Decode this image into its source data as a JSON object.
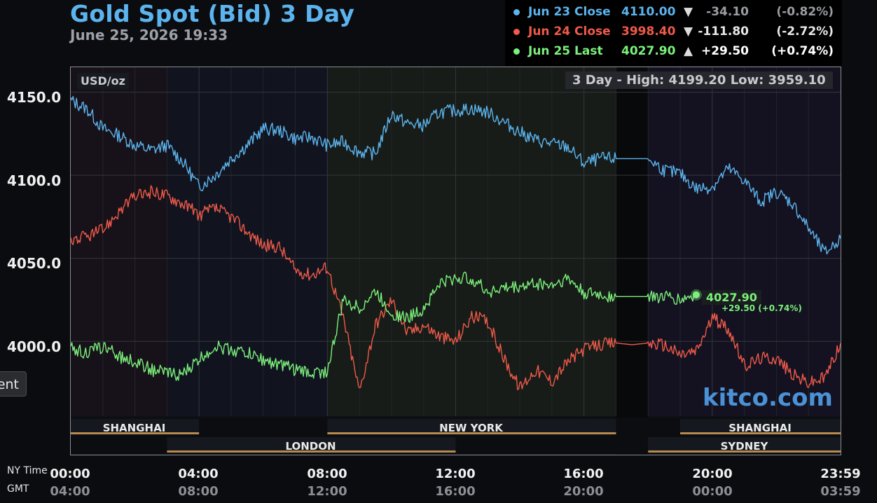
{
  "header": {
    "title": "Gold Spot (Bid) 3 Day",
    "datetime": "June 25, 2026 19:33"
  },
  "legend": [
    {
      "label": "Jun 23 Close",
      "price": "4110.00",
      "arrow": "▼",
      "change": "-34.10",
      "pct": "(-0.82%)",
      "color": "#5cb4ee",
      "change_color": "#9a9ca0"
    },
    {
      "label": "Jun 24 Close",
      "price": "3998.40",
      "arrow": "▼",
      "change": "-111.80",
      "pct": "(-2.72%)",
      "color": "#ef5a4a",
      "change_color": "#e8e8e8"
    },
    {
      "label": "Jun 25 Last",
      "price": "4027.90",
      "arrow": "▲",
      "change": "+29.50",
      "pct": "(+0.74%)",
      "color": "#7cf07c",
      "change_color": "#ffffff"
    }
  ],
  "chart_meta": {
    "unit_label": "USD/oz",
    "hilo": "3 Day - High: 4199.20  Low: 3959.10",
    "watermark": "kitco.com",
    "last_price": "4027.90",
    "last_change": "+29.50 (+0.74%)"
  },
  "side_button": "ent",
  "axis_rows": {
    "ny": "NY Time",
    "gmt": "GMT"
  },
  "chart_data": {
    "type": "line",
    "ylim": [
      3955,
      4165
    ],
    "xlim": [
      0,
      24
    ],
    "y_ticks": [
      4150.0,
      4100.0,
      4050.0,
      4000.0
    ],
    "y_tick_labels": [
      "4150.0",
      "4100.0",
      "4050.0",
      "4000.0"
    ],
    "x_ticks": [
      0,
      4,
      8,
      12,
      16,
      20,
      23.98
    ],
    "x_tick_labels_ny": [
      "00:00",
      "04:00",
      "08:00",
      "12:00",
      "16:00",
      "20:00",
      "23:59"
    ],
    "x_tick_labels_gmt": [
      "04:00",
      "08:00",
      "12:00",
      "16:00",
      "20:00",
      "00:00",
      "03:59"
    ],
    "grid": true,
    "legend_position": "top-right",
    "sessions": [
      {
        "name": "SHANGHAI",
        "start": 0,
        "end": 4,
        "row": 1,
        "label": "SHANGHAI"
      },
      {
        "name": "NEW YORK",
        "start": 8,
        "end": 17,
        "row": 1,
        "label": "NEW YORK"
      },
      {
        "name": "SHANGHAI",
        "start": 19,
        "end": 24,
        "row": 1,
        "label": "SHANGHAI"
      },
      {
        "name": "LONDON",
        "start": 3,
        "end": 12,
        "row": 2,
        "label": "LONDON"
      },
      {
        "name": "SYDNEY",
        "start": 18,
        "end": 24,
        "row": 2,
        "label": "SYDNEY"
      }
    ],
    "series": [
      {
        "name": "Jun 23 Close",
        "color": "#5cb4ee",
        "x": [
          0,
          0.5,
          1,
          1.5,
          2,
          2.5,
          3,
          3.5,
          4,
          4.5,
          5,
          5.5,
          6,
          6.5,
          7,
          7.5,
          8,
          8.5,
          9,
          9.5,
          10,
          10.5,
          11,
          11.5,
          12,
          12.5,
          13,
          13.5,
          14,
          14.5,
          15,
          15.5,
          16,
          16.5,
          17,
          17.5,
          18,
          18.5,
          19,
          19.5,
          20,
          20.5,
          21,
          21.5,
          22,
          22.5,
          23,
          23.5,
          24
        ],
        "y": [
          4145,
          4140,
          4128,
          4124,
          4118,
          4115,
          4118,
          4108,
          4093,
          4100,
          4110,
          4118,
          4128,
          4127,
          4122,
          4123,
          4118,
          4120,
          4114,
          4113,
          4137,
          4131,
          4130,
          4138,
          4139,
          4140,
          4138,
          4132,
          4126,
          4121,
          4119,
          4117,
          4107,
          4110,
          4110,
          4110,
          4110,
          4103,
          4101,
          4092,
          4093,
          4104,
          4097,
          4084,
          4090,
          4083,
          4068,
          4053,
          4062
        ]
      },
      {
        "name": "Jun 24 Close",
        "color": "#ef5a4a",
        "x": [
          0,
          0.5,
          1,
          1.5,
          2,
          2.5,
          3,
          3.5,
          4,
          4.5,
          5,
          5.5,
          6,
          6.5,
          7,
          7.5,
          8,
          8.5,
          9,
          9.5,
          10,
          10.5,
          11,
          11.5,
          12,
          12.5,
          13,
          13.5,
          14,
          14.5,
          15,
          15.5,
          16,
          16.5,
          17,
          17.5,
          18,
          18.5,
          19,
          19.5,
          20,
          20.5,
          21,
          21.5,
          22,
          22.5,
          23,
          23.5,
          24
        ],
        "y": [
          4061,
          4063,
          4067,
          4078,
          4087,
          4090,
          4088,
          4083,
          4076,
          4080,
          4075,
          4066,
          4058,
          4057,
          4043,
          4040,
          4045,
          4014,
          3970,
          4010,
          4025,
          4005,
          4010,
          4003,
          4000,
          4015,
          4012,
          3990,
          3972,
          3983,
          3976,
          3988,
          3995,
          3998,
          3999,
          3998,
          3999,
          3998,
          3992,
          3994,
          4014,
          4008,
          3985,
          3990,
          3990,
          3980,
          3975,
          3978,
          3999
        ]
      },
      {
        "name": "Jun 25 Last",
        "color": "#7cf07c",
        "x": [
          0,
          0.5,
          1,
          1.5,
          2,
          2.5,
          3,
          3.5,
          4,
          4.5,
          5,
          5.5,
          6,
          6.5,
          7,
          7.5,
          8,
          8.5,
          9,
          9.5,
          10,
          10.5,
          11,
          11.5,
          12,
          12.5,
          13,
          13.5,
          14,
          14.5,
          15,
          15.5,
          16,
          16.5,
          17,
          17.5,
          18,
          18.5,
          19,
          19.5
        ],
        "y": [
          3996,
          3993,
          3997,
          3991,
          3988,
          3983,
          3981,
          3980,
          3989,
          3997,
          3995,
          3993,
          3989,
          3986,
          3983,
          3981,
          3982,
          4025,
          4020,
          4030,
          4017,
          4014,
          4020,
          4035,
          4038,
          4038,
          4030,
          4032,
          4033,
          4035,
          4034,
          4038,
          4029,
          4028,
          4027,
          4027,
          4027,
          4027,
          4025,
          4028
        ]
      }
    ]
  }
}
